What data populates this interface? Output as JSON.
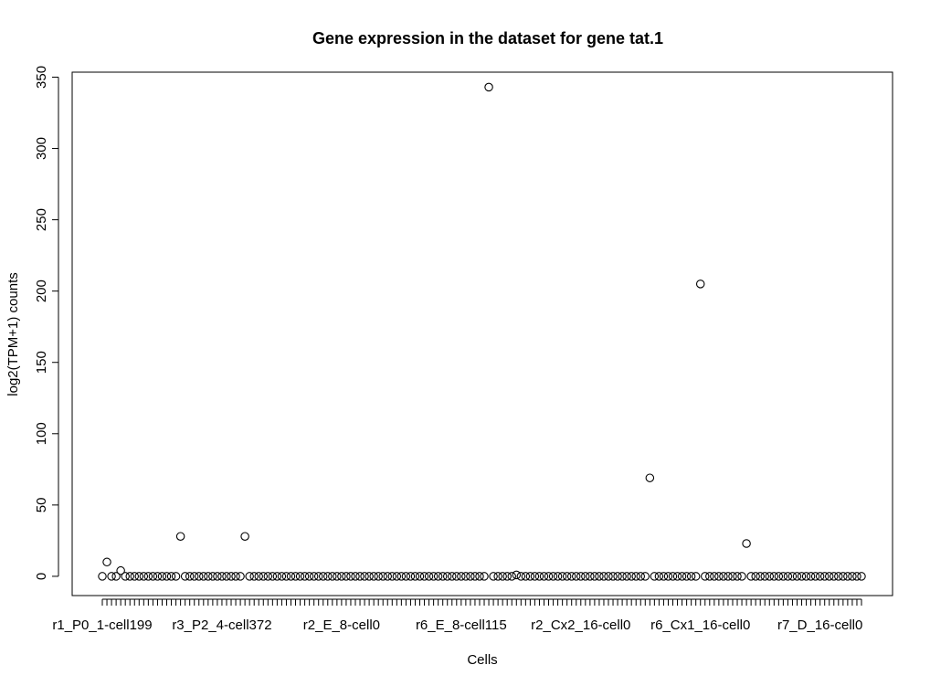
{
  "chart_data": {
    "type": "scatter",
    "title": "Gene expression in the dataset for gene tat.1",
    "xlabel": "Cells",
    "ylabel": "log2(TPM+1) counts",
    "ylim": [
      -13.5,
      353.5
    ],
    "yticks": [
      0,
      50,
      100,
      150,
      200,
      250,
      300,
      350
    ],
    "n_cells": 166,
    "x_tick_labels": [
      {
        "index": 1,
        "label": "r1_P0_1-cell199"
      },
      {
        "index": 27,
        "label": "r3_P2_4-cell372"
      },
      {
        "index": 53,
        "label": "r2_E_8-cell0"
      },
      {
        "index": 79,
        "label": "r6_E_8-cell115"
      },
      {
        "index": 105,
        "label": "r2_Cx2_16-cell0"
      },
      {
        "index": 131,
        "label": "r6_Cx1_16-cell0"
      },
      {
        "index": 157,
        "label": "r7_D_16-cell0"
      }
    ],
    "nonzero_points": [
      {
        "index": 2,
        "value": 10
      },
      {
        "index": 5,
        "value": 4
      },
      {
        "index": 18,
        "value": 28
      },
      {
        "index": 32,
        "value": 28
      },
      {
        "index": 85,
        "value": 343
      },
      {
        "index": 91,
        "value": 1
      },
      {
        "index": 120,
        "value": 69
      },
      {
        "index": 131,
        "value": 205
      },
      {
        "index": 141,
        "value": 23
      }
    ],
    "default_value": 0,
    "grid": false,
    "legend": "none"
  }
}
